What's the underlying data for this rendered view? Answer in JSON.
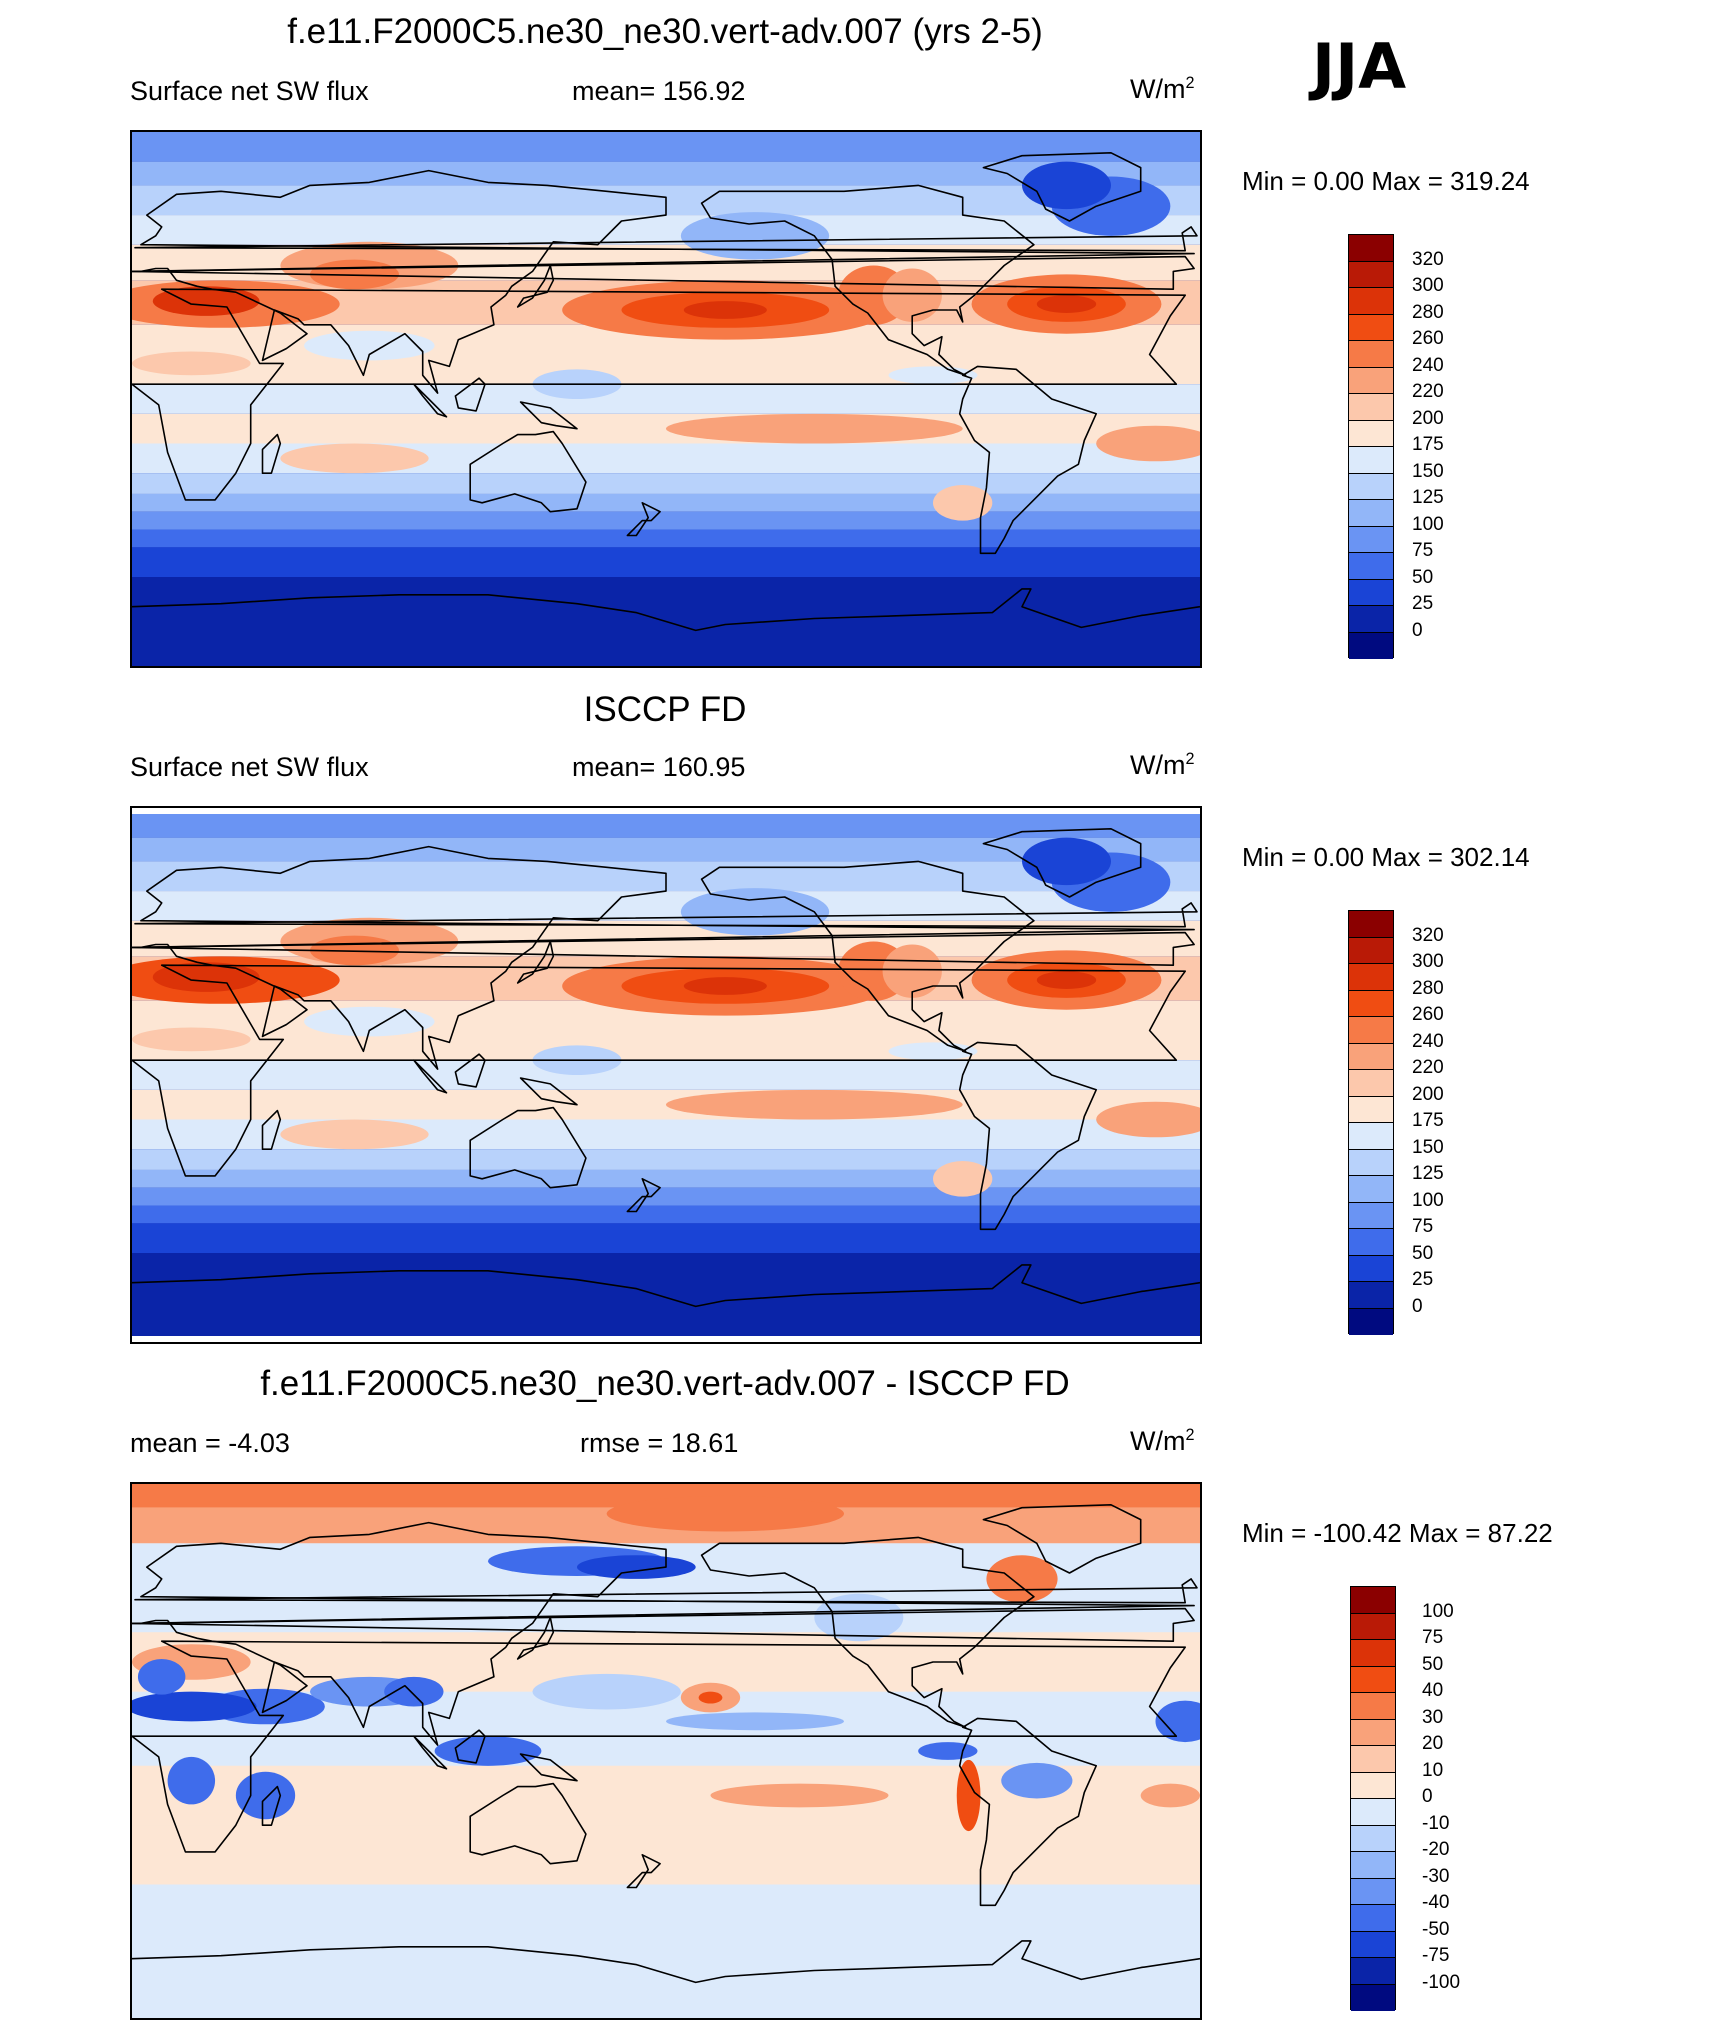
{
  "season": "JJA",
  "panels": [
    {
      "title": "f.e11.F2000C5.ne30_ne30.vert-adv.007 (yrs 2-5)",
      "left_label": "Surface net SW flux",
      "center_label": "mean= 156.92",
      "units_base": "W/m",
      "units_exp": "2",
      "minmax": "Min =    0.00 Max = 319.24",
      "colorbar_labels": [
        "320",
        "300",
        "280",
        "260",
        "240",
        "220",
        "200",
        "175",
        "150",
        "125",
        "100",
        "75",
        "50",
        "25",
        "0"
      ],
      "colorbar_colors": [
        "#8b0000",
        "#b91a06",
        "#dc3308",
        "#f04d12",
        "#f67a47",
        "#f9a27a",
        "#fcc8ac",
        "#fde6d4",
        "#dceafb",
        "#b8d2fb",
        "#92b6f8",
        "#6a94f3",
        "#3f6ceb",
        "#1a44d6",
        "#0a24a8",
        "#000a80"
      ],
      "map_mode": "abs",
      "offset": 0
    },
    {
      "title": "ISCCP FD",
      "left_label": "Surface net SW flux",
      "center_label": "mean= 160.95",
      "units_base": "W/m",
      "units_exp": "2",
      "minmax": "Min =    0.00 Max = 302.14",
      "colorbar_labels": [
        "320",
        "300",
        "280",
        "260",
        "240",
        "220",
        "200",
        "175",
        "150",
        "125",
        "100",
        "75",
        "50",
        "25",
        "0"
      ],
      "colorbar_colors": [
        "#8b0000",
        "#b91a06",
        "#dc3308",
        "#f04d12",
        "#f67a47",
        "#f9a27a",
        "#fcc8ac",
        "#fde6d4",
        "#dceafb",
        "#b8d2fb",
        "#92b6f8",
        "#6a94f3",
        "#3f6ceb",
        "#1a44d6",
        "#0a24a8",
        "#000a80"
      ],
      "map_mode": "abs",
      "offset": 4
    },
    {
      "title": "f.e11.F2000C5.ne30_ne30.vert-adv.007 - ISCCP FD",
      "left_label": "mean =  -4.03",
      "center_label": "rmse =  18.61",
      "units_base": "W/m",
      "units_exp": "2",
      "minmax": "Min = -100.42 Max =  87.22",
      "colorbar_labels": [
        "100",
        "75",
        "50",
        "40",
        "30",
        "20",
        "10",
        "0",
        "-10",
        "-20",
        "-30",
        "-40",
        "-50",
        "-75",
        "-100"
      ],
      "colorbar_colors": [
        "#8b0000",
        "#b91a06",
        "#dc3308",
        "#f04d12",
        "#f67a47",
        "#f9a27a",
        "#fcc8ac",
        "#fde6d4",
        "#dceafb",
        "#b8d2fb",
        "#92b6f8",
        "#6a94f3",
        "#3f6ceb",
        "#1a44d6",
        "#0a24a8",
        "#000a80"
      ],
      "map_mode": "diff",
      "offset": 0
    }
  ]
}
